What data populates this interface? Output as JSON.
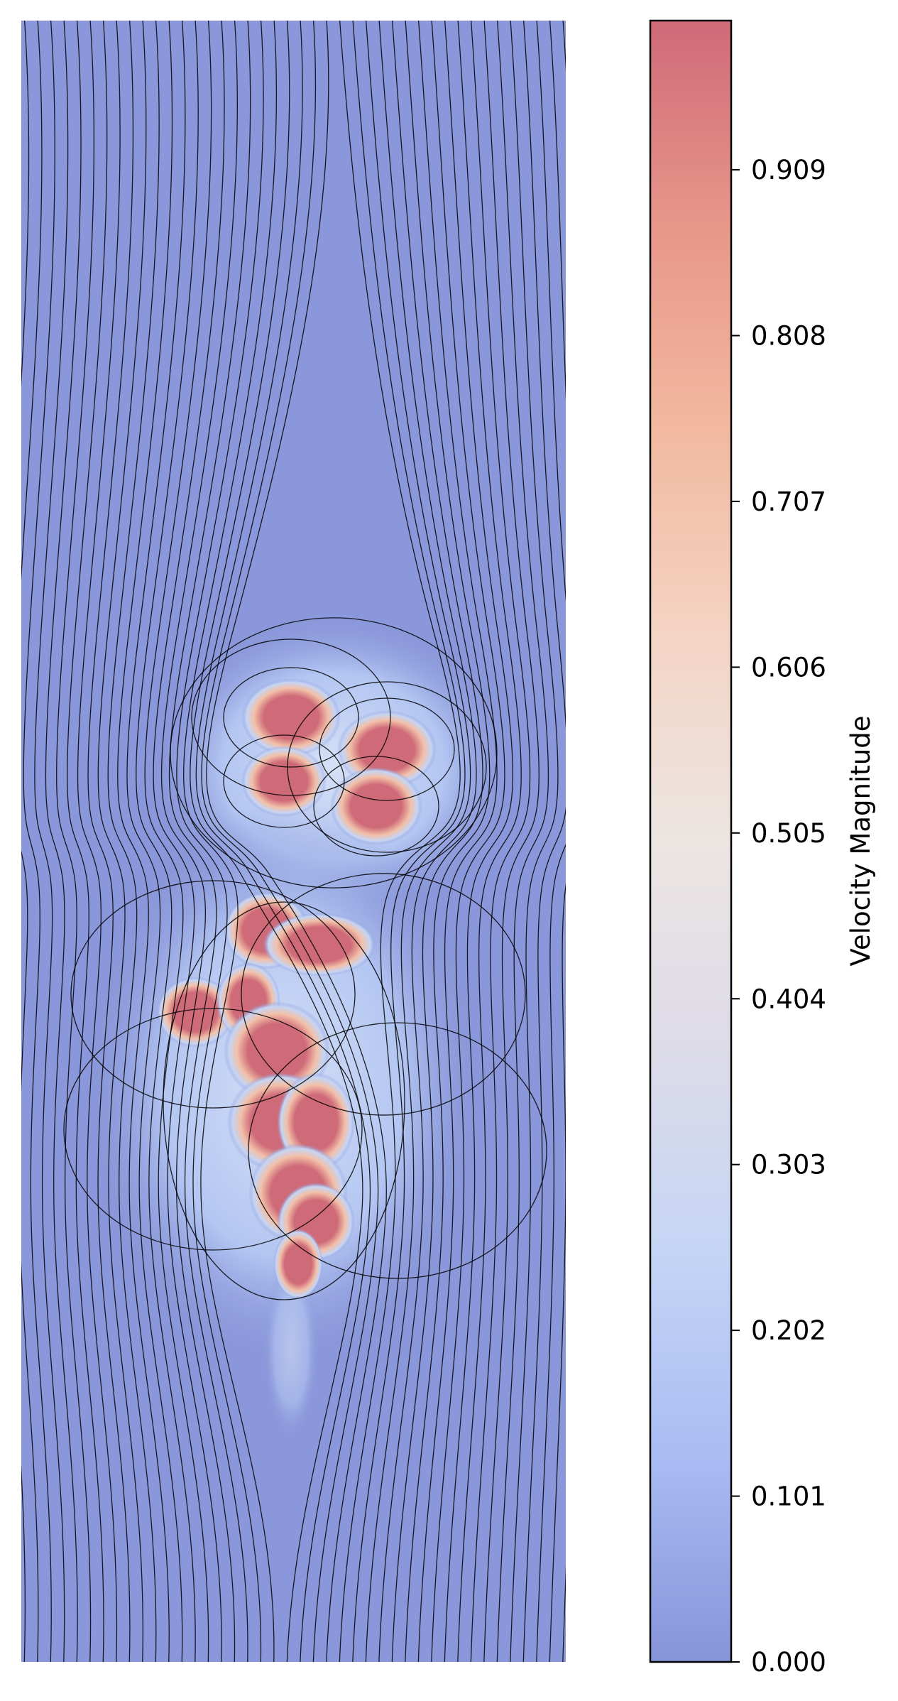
{
  "chart_data": {
    "type": "heatmap",
    "title": "",
    "xlabel": "",
    "ylabel": "",
    "axes_visible": false,
    "overlay": "streamlines (black, with arrowheads)",
    "colormap": "coolwarm",
    "colorbar": {
      "label": "Velocity Magnitude",
      "position": "right",
      "range": [
        0.0,
        0.9999
      ],
      "ticks": [
        0.0,
        0.101,
        0.202,
        0.303,
        0.404,
        0.505,
        0.606,
        0.707,
        0.808,
        0.909
      ],
      "tick_labels": [
        "0.000",
        "0.101",
        "0.202",
        "0.303",
        "0.404",
        "0.505",
        "0.606",
        "0.707",
        "0.808",
        "0.909"
      ],
      "colors": [
        "#8694d8",
        "#a9bcf3",
        "#c5d5f5",
        "#dddbe8",
        "#ece5e2",
        "#f4d4c4",
        "#f2b9a0",
        "#e8968a",
        "#cf6a78"
      ]
    },
    "high_velocity_regions": [
      {
        "name": "upper vortex pair",
        "magnitude": "≈1.0"
      },
      {
        "name": "lower turbulent plume",
        "magnitude": "≈1.0"
      }
    ],
    "background_magnitude": 0.05
  }
}
